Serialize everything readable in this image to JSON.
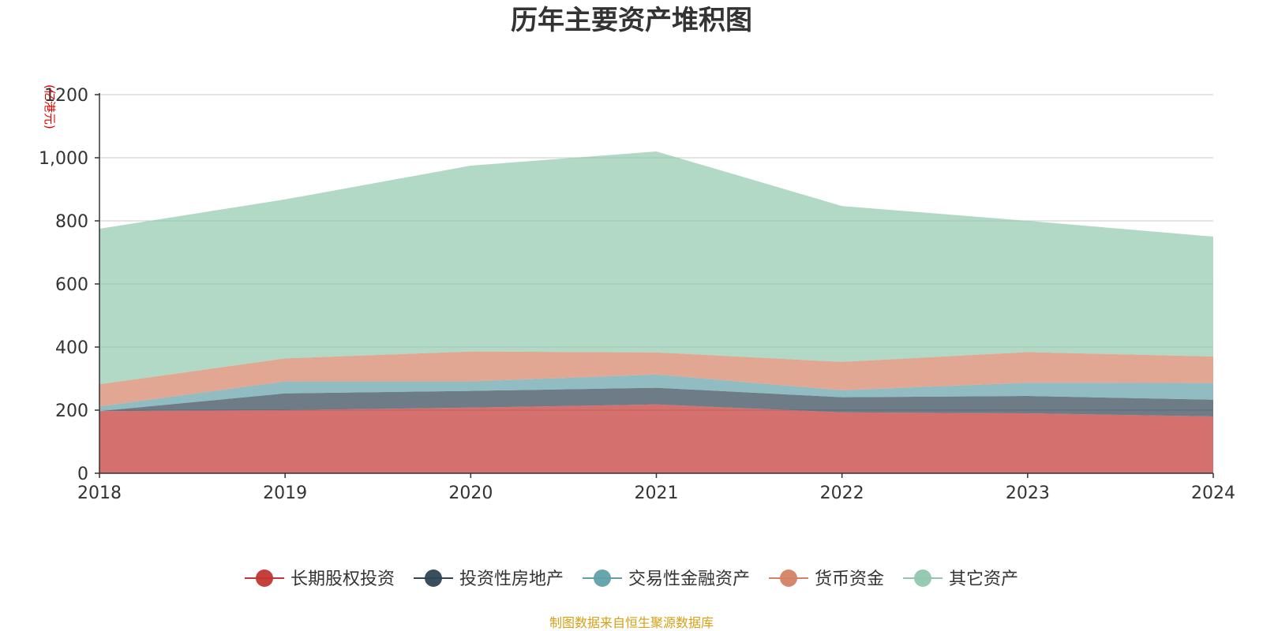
{
  "chart_data": {
    "type": "area",
    "stacked": true,
    "title": "历年主要资产堆积图",
    "ylabel": "(亿港元)",
    "x": [
      "2018",
      "2019",
      "2020",
      "2021",
      "2022",
      "2023",
      "2024"
    ],
    "ylim": [
      0,
      1200
    ],
    "yticks": [
      "0",
      "200",
      "400",
      "600",
      "800",
      "1,000",
      "1200"
    ],
    "grid": true,
    "legend_position": "bottom",
    "series": [
      {
        "name": "长期股权投资",
        "color": "#c23531",
        "values": [
          197,
          200,
          208,
          218,
          193,
          190,
          180
        ]
      },
      {
        "name": "投资性房地产",
        "color": "#2f4554",
        "values": [
          0,
          53,
          53,
          53,
          48,
          55,
          53
        ]
      },
      {
        "name": "交易性金融资产",
        "color": "#61a0a8",
        "values": [
          15,
          38,
          30,
          42,
          22,
          42,
          53
        ]
      },
      {
        "name": "货币资金",
        "color": "#d48265",
        "values": [
          70,
          73,
          95,
          70,
          90,
          97,
          84
        ]
      },
      {
        "name": "其它资产",
        "color": "#91c7ae",
        "values": [
          493,
          504,
          589,
          637,
          494,
          416,
          380
        ]
      }
    ],
    "source": "制图数据来自恒生聚源数据库"
  }
}
